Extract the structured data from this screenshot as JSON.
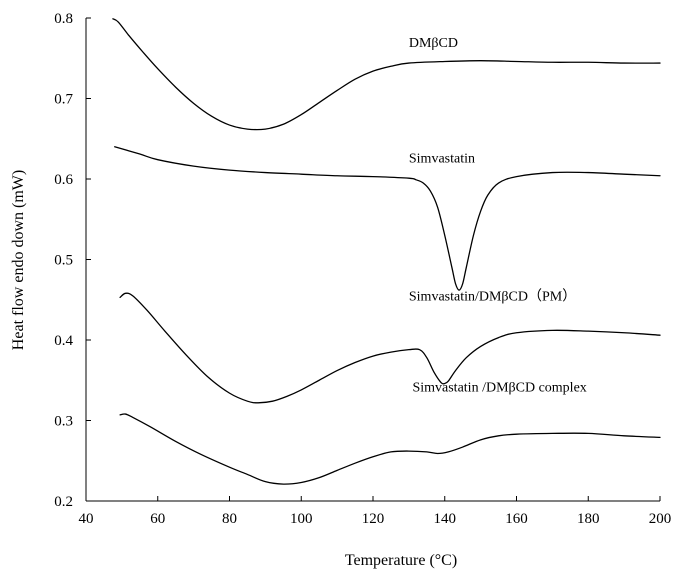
{
  "chart_data": {
    "type": "line",
    "xlabel": "Temperature (°C)",
    "ylabel": "Heat flow endo down (mW)",
    "xlim": [
      40,
      200
    ],
    "ylim": [
      0.2,
      0.8
    ],
    "xticks": [
      40,
      60,
      80,
      100,
      120,
      140,
      160,
      180,
      200
    ],
    "yticks": [
      0.2,
      0.3,
      0.4,
      0.5,
      0.6,
      0.7,
      0.8
    ],
    "x_tick_labels": [
      "40",
      "60",
      "80",
      "100",
      "120",
      "140",
      "160",
      "180",
      "200"
    ],
    "y_tick_labels": [
      "0.2",
      "0.3",
      "0.4",
      "0.5",
      "0.6",
      "0.7",
      "0.8"
    ],
    "grid": false,
    "legend": "none",
    "series": [
      {
        "name": "DMβCD",
        "label_pos": [
          130,
          0.77
        ],
        "points": [
          [
            47.5,
            0.799
          ],
          [
            49,
            0.795
          ],
          [
            52,
            0.778
          ],
          [
            56,
            0.757
          ],
          [
            60,
            0.737
          ],
          [
            65,
            0.714
          ],
          [
            70,
            0.694
          ],
          [
            75,
            0.678
          ],
          [
            80,
            0.667
          ],
          [
            85,
            0.662
          ],
          [
            90,
            0.662
          ],
          [
            95,
            0.668
          ],
          [
            100,
            0.68
          ],
          [
            105,
            0.695
          ],
          [
            110,
            0.71
          ],
          [
            115,
            0.724
          ],
          [
            120,
            0.734
          ],
          [
            125,
            0.74
          ],
          [
            130,
            0.744
          ],
          [
            140,
            0.746
          ],
          [
            150,
            0.747
          ],
          [
            160,
            0.746
          ],
          [
            170,
            0.745
          ],
          [
            180,
            0.745
          ],
          [
            190,
            0.744
          ],
          [
            200,
            0.744
          ]
        ]
      },
      {
        "name": "Simvastatin",
        "label_pos": [
          130,
          0.627
        ],
        "points": [
          [
            48,
            0.64
          ],
          [
            55,
            0.631
          ],
          [
            60,
            0.624
          ],
          [
            70,
            0.616
          ],
          [
            80,
            0.611
          ],
          [
            90,
            0.608
          ],
          [
            100,
            0.606
          ],
          [
            110,
            0.604
          ],
          [
            120,
            0.603
          ],
          [
            130,
            0.601
          ],
          [
            132,
            0.599
          ],
          [
            134,
            0.595
          ],
          [
            136,
            0.585
          ],
          [
            138,
            0.565
          ],
          [
            140,
            0.53
          ],
          [
            142,
            0.49
          ],
          [
            143,
            0.47
          ],
          [
            144,
            0.462
          ],
          [
            145,
            0.47
          ],
          [
            146,
            0.49
          ],
          [
            148,
            0.53
          ],
          [
            150,
            0.56
          ],
          [
            152,
            0.58
          ],
          [
            155,
            0.595
          ],
          [
            160,
            0.603
          ],
          [
            170,
            0.608
          ],
          [
            180,
            0.608
          ],
          [
            190,
            0.606
          ],
          [
            200,
            0.604
          ]
        ]
      },
      {
        "name": "Simvastatin/DMβCD（PM）",
        "label_pos": [
          130,
          0.455
        ],
        "points": [
          [
            49.5,
            0.453
          ],
          [
            51,
            0.458
          ],
          [
            53,
            0.455
          ],
          [
            57,
            0.437
          ],
          [
            62,
            0.411
          ],
          [
            68,
            0.381
          ],
          [
            74,
            0.354
          ],
          [
            80,
            0.334
          ],
          [
            85,
            0.324
          ],
          [
            88,
            0.322
          ],
          [
            92,
            0.324
          ],
          [
            96,
            0.33
          ],
          [
            100,
            0.338
          ],
          [
            105,
            0.35
          ],
          [
            110,
            0.362
          ],
          [
            115,
            0.372
          ],
          [
            120,
            0.38
          ],
          [
            125,
            0.385
          ],
          [
            130,
            0.388
          ],
          [
            133,
            0.388
          ],
          [
            135,
            0.378
          ],
          [
            137,
            0.36
          ],
          [
            139,
            0.347
          ],
          [
            140,
            0.346
          ],
          [
            141,
            0.349
          ],
          [
            143,
            0.362
          ],
          [
            146,
            0.378
          ],
          [
            150,
            0.392
          ],
          [
            155,
            0.403
          ],
          [
            160,
            0.409
          ],
          [
            170,
            0.412
          ],
          [
            180,
            0.411
          ],
          [
            190,
            0.409
          ],
          [
            200,
            0.406
          ]
        ]
      },
      {
        "name": "Simvastatin /DMβCD complex",
        "label_pos": [
          131,
          0.342
        ],
        "points": [
          [
            49.5,
            0.307
          ],
          [
            51,
            0.308
          ],
          [
            53,
            0.304
          ],
          [
            58,
            0.292
          ],
          [
            65,
            0.274
          ],
          [
            72,
            0.258
          ],
          [
            80,
            0.242
          ],
          [
            85,
            0.233
          ],
          [
            90,
            0.224
          ],
          [
            95,
            0.221
          ],
          [
            100,
            0.223
          ],
          [
            105,
            0.229
          ],
          [
            110,
            0.238
          ],
          [
            115,
            0.247
          ],
          [
            120,
            0.255
          ],
          [
            125,
            0.261
          ],
          [
            130,
            0.262
          ],
          [
            135,
            0.261
          ],
          [
            138,
            0.259
          ],
          [
            141,
            0.261
          ],
          [
            145,
            0.267
          ],
          [
            150,
            0.276
          ],
          [
            155,
            0.281
          ],
          [
            160,
            0.283
          ],
          [
            170,
            0.284
          ],
          [
            180,
            0.284
          ],
          [
            190,
            0.281
          ],
          [
            200,
            0.279
          ]
        ]
      }
    ]
  }
}
